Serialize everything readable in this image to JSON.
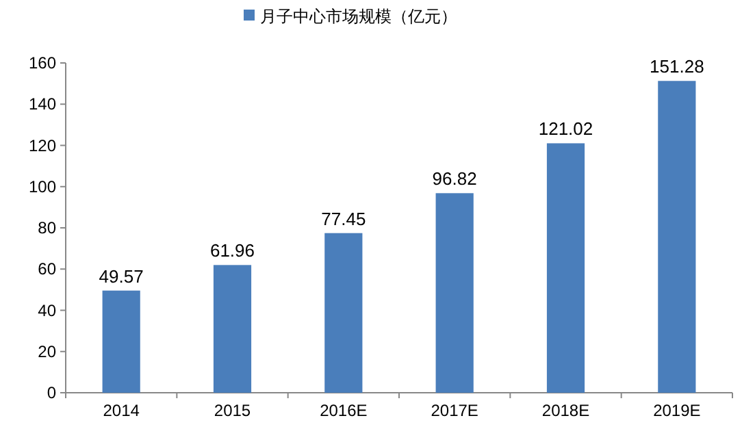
{
  "chart_data": {
    "type": "bar",
    "categories": [
      "2014",
      "2015",
      "2016E",
      "2017E",
      "2018E",
      "2019E"
    ],
    "series": [
      {
        "name": "月子中心市场规模（亿元）",
        "color": "#4a7ebb",
        "values": [
          49.57,
          61.96,
          77.45,
          96.82,
          121.02,
          151.28
        ]
      }
    ],
    "ylim": [
      0,
      160
    ],
    "yticks": [
      0,
      20,
      40,
      60,
      80,
      100,
      120,
      140,
      160
    ],
    "data_labels": true,
    "legend": "top",
    "grid": false
  }
}
